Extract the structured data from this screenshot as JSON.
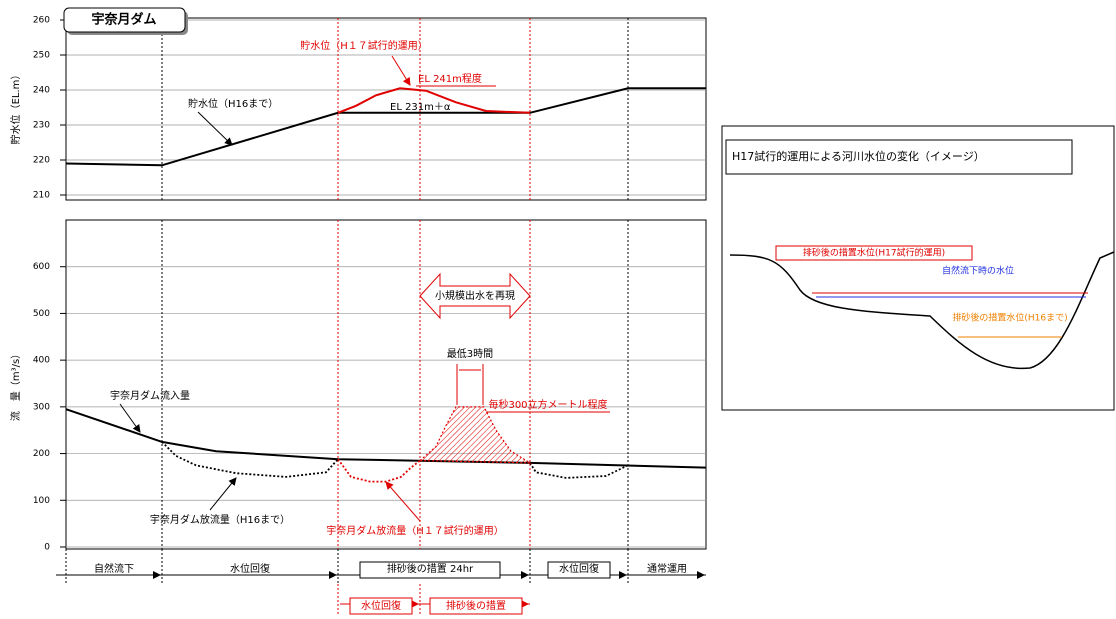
{
  "chart_data": [
    {
      "type": "line",
      "title": "宇奈月ダム",
      "ylabel": "貯水位（EL.m）",
      "xlim": [
        0,
        64
      ],
      "ylim": [
        210,
        260
      ],
      "yticks": [
        210,
        220,
        230,
        240,
        250,
        260
      ],
      "grid": true,
      "annotations": [
        "EL 241m程度",
        "EL 231m＋α"
      ],
      "series": [
        {
          "name": "貯水位（H16まで）",
          "color": "#000000",
          "style": "solid",
          "x": [
            0,
            9.6,
            27.2,
            46.4,
            56.2,
            64
          ],
          "values": [
            219,
            218.5,
            233.5,
            233.5,
            240.5,
            240.5
          ]
        },
        {
          "name": "貯水位（H１７試行的運用）",
          "color": "#e00000",
          "style": "solid",
          "x": [
            27.2,
            29,
            31,
            33.4,
            36,
            39,
            42,
            46.4
          ],
          "values": [
            233.5,
            235.5,
            238.5,
            240.5,
            239.8,
            236.5,
            234,
            233.5
          ]
        }
      ]
    },
    {
      "type": "line",
      "ylabel": "流　量（m³/s）",
      "xlim": [
        0,
        64
      ],
      "ylim": [
        0,
        700
      ],
      "yticks": [
        0,
        100,
        200,
        300,
        400,
        500,
        600
      ],
      "grid": true,
      "annotations": [
        "小規模出水を再現",
        "最低3時間"
      ],
      "series": [
        {
          "name": "宇奈月ダム流入量",
          "color": "#000000",
          "style": "solid",
          "x": [
            0,
            9.6,
            15,
            27.2,
            46.4,
            64
          ],
          "values": [
            295,
            225,
            205,
            188,
            180,
            170
          ]
        },
        {
          "name": "宇奈月ダム放流量（H16まで）",
          "color": "#000000",
          "style": "dotted",
          "x": [
            9.6,
            11,
            13,
            17,
            22,
            26,
            27.2,
            37,
            46.4,
            47,
            50,
            54,
            56.2
          ],
          "values": [
            225,
            195,
            175,
            158,
            150,
            160,
            188,
            null,
            180,
            160,
            148,
            152,
            175
          ]
        },
        {
          "name": "宇奈月ダム放流量（H１７試行的運用）",
          "color": "#e00000",
          "style": "dotted",
          "x": [
            27.2,
            28.5,
            30.4,
            32,
            33.5,
            34.5,
            35.4
          ],
          "values": [
            188,
            150,
            140,
            140,
            150,
            170,
            185
          ]
        },
        {
          "name": "毎秒300立方メートル程度",
          "color": "#e00000",
          "style": "hatched",
          "x": [
            35.4,
            37,
            38,
            39,
            41.8,
            43,
            44.5,
            46.4
          ],
          "values": [
            185,
            215,
            260,
            300,
            300,
            250,
            205,
            180
          ]
        }
      ]
    }
  ],
  "phases": [
    "自然流下",
    "水位回復",
    "排砂後の措置 24hr",
    "水位回復",
    "通常運用"
  ],
  "sub_phases": [
    "水位回復",
    "排砂後の措置"
  ],
  "inset": {
    "title": "H17試行的運用による河川水位の変化（イメージ）",
    "labels": [
      "排砂後の措置水位(H17試行的運用)",
      "自然流下時の水位",
      "排砂後の措置水位(H16まで)"
    ]
  }
}
